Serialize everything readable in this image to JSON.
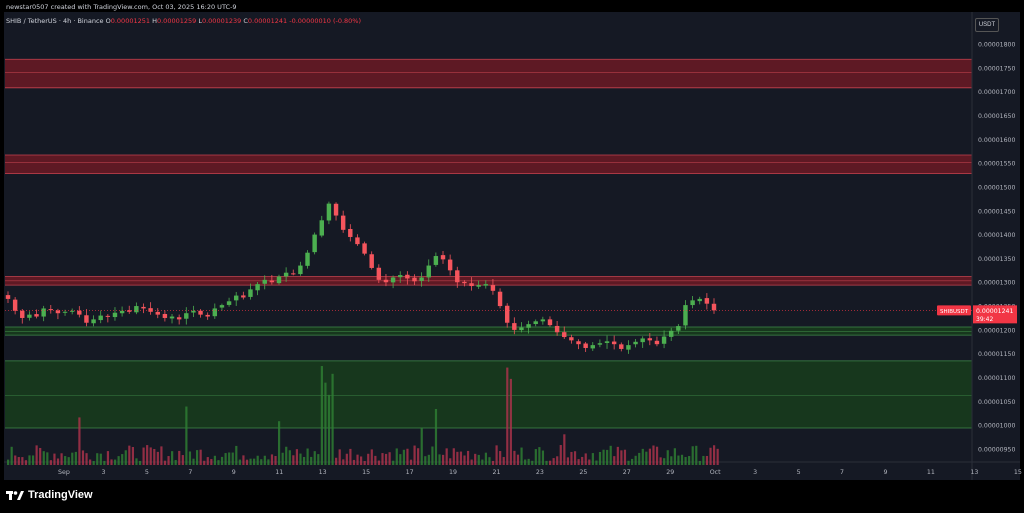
{
  "header": {
    "author_line": "newstar0507 created with TradingView.com, Oct 03, 2025 16:20 UTC-9",
    "symbol_line": "SHIB / TetherUS · 4h · Binance",
    "ohlc": [
      {
        "label": "O",
        "value": "0.00001251"
      },
      {
        "label": "H",
        "value": "0.00001259"
      },
      {
        "label": "L",
        "value": "0.00001239"
      },
      {
        "label": "C",
        "value": "0.00001241"
      },
      {
        "label": "",
        "value": "-0.00000010 (-0.80%)"
      }
    ]
  },
  "price_scale": {
    "currency": "USDT",
    "ticks": [
      "0.00001800",
      "0.00001750",
      "0.00001700",
      "0.00001650",
      "0.00001600",
      "0.00001550",
      "0.00001500",
      "0.00001450",
      "0.00001400",
      "0.00001350",
      "0.00001300",
      "0.00001250",
      "0.00001200",
      "0.00001150",
      "0.00001100",
      "0.00001050",
      "0.00001000",
      "0.00000950"
    ],
    "tick_values": [
      1800,
      1750,
      1700,
      1650,
      1600,
      1550,
      1500,
      1450,
      1400,
      1350,
      1300,
      1250,
      1200,
      1150,
      1100,
      1050,
      1000,
      950
    ],
    "last_price_label": "0.00001241",
    "symbol_tag": "SHIBUSDT",
    "countdown": "39:42"
  },
  "time_axis": {
    "labels": [
      "Sep",
      "3",
      "5",
      "7",
      "9",
      "11",
      "13",
      "15",
      "17",
      "19",
      "21",
      "23",
      "25",
      "27",
      "29",
      "Oct",
      "3",
      "5",
      "7",
      "9",
      "11",
      "13",
      "15"
    ],
    "day_index": [
      0,
      2,
      4,
      6,
      8,
      10,
      12,
      14,
      16,
      18,
      20,
      22,
      24,
      26,
      28,
      30,
      32,
      34,
      36,
      38,
      40,
      42,
      44
    ]
  },
  "colors": {
    "up": "#4caf50",
    "down": "#f5555d",
    "resistance_zone": "#6b1a24",
    "support_zone": "#173d1c",
    "last_price": "#f23645",
    "background": "#151924"
  },
  "chart_data": {
    "type": "candlestick",
    "unit": "x 1e-8 USDT",
    "ylim": [
      925,
      1830
    ],
    "grid": false,
    "close_series": [
      1265,
      1240,
      1225,
      1232,
      1228,
      1245,
      1242,
      1235,
      1238,
      1240,
      1232,
      1215,
      1222,
      1230,
      1228,
      1236,
      1240,
      1238,
      1250,
      1245,
      1238,
      1232,
      1225,
      1228,
      1222,
      1235,
      1240,
      1232,
      1228,
      1245,
      1252,
      1260,
      1272,
      1268,
      1285,
      1296,
      1305,
      1300,
      1312,
      1320,
      1318,
      1335,
      1362,
      1400,
      1430,
      1465,
      1440,
      1410,
      1395,
      1380,
      1360,
      1330,
      1305,
      1300,
      1310,
      1315,
      1308,
      1302,
      1310,
      1335,
      1355,
      1348,
      1325,
      1300,
      1298,
      1292,
      1294,
      1296,
      1282,
      1250,
      1215,
      1200,
      1205,
      1212,
      1218,
      1222,
      1210,
      1195,
      1185,
      1178,
      1170,
      1162,
      1168,
      1172,
      1176,
      1170,
      1160,
      1168,
      1175,
      1182,
      1178,
      1170,
      1186,
      1198,
      1208,
      1252,
      1262,
      1265,
      1255,
      1241
    ],
    "horizontal_zones": [
      {
        "kind": "resistance",
        "from": 1708,
        "to": 1768,
        "line": 1740
      },
      {
        "kind": "resistance",
        "from": 1528,
        "to": 1567,
        "line": 1551
      },
      {
        "kind": "resistance",
        "from": 1294,
        "to": 1312,
        "line": 1303
      },
      {
        "kind": "support",
        "from": 1189,
        "to": 1206,
        "line": 1197
      },
      {
        "kind": "support",
        "from": 994,
        "to": 1135,
        "line": 1062
      }
    ]
  }
}
